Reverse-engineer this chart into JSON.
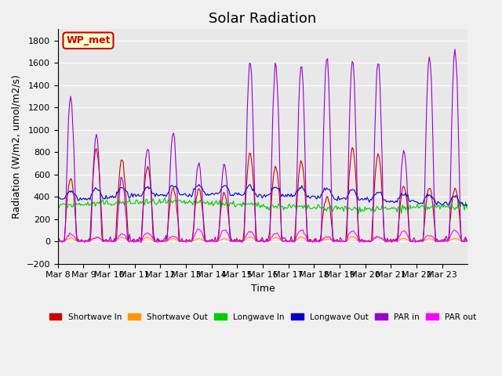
{
  "title": "Solar Radiation",
  "ylabel": "Radiation (W/m2, umol/m2/s)",
  "xlabel": "Time",
  "ylim": [
    -200,
    1900
  ],
  "yticks": [
    -200,
    0,
    200,
    400,
    600,
    800,
    1000,
    1200,
    1400,
    1600,
    1800
  ],
  "date_labels": [
    "Mar 8",
    "Mar 9",
    "Mar 10",
    "Mar 11",
    "Mar 12",
    "Mar 13",
    "Mar 14",
    "Mar 15",
    "Mar 16",
    "Mar 17",
    "Mar 18",
    "Mar 19",
    "Mar 20",
    "Mar 21",
    "Mar 22",
    "Mar 23"
  ],
  "legend_entries": [
    "Shortwave In",
    "Shortwave Out",
    "Longwave In",
    "Longwave Out",
    "PAR in",
    "PAR out"
  ],
  "legend_colors": [
    "#cc0000",
    "#ff9900",
    "#00cc00",
    "#0000cc",
    "#9900cc",
    "#ff00ff"
  ],
  "annotation_text": "WP_met",
  "annotation_color": "#cc0000",
  "annotation_bg": "#ffffcc",
  "background_color": "#e8e8e8",
  "grid_color": "#ffffff",
  "n_days": 16,
  "title_fontsize": 13,
  "label_fontsize": 9,
  "tick_fontsize": 8,
  "par_peaks": [
    1300,
    950,
    560,
    840,
    970,
    700,
    680,
    1600,
    1600,
    1600,
    1630,
    1630,
    1610,
    820,
    1660,
    1730
  ]
}
